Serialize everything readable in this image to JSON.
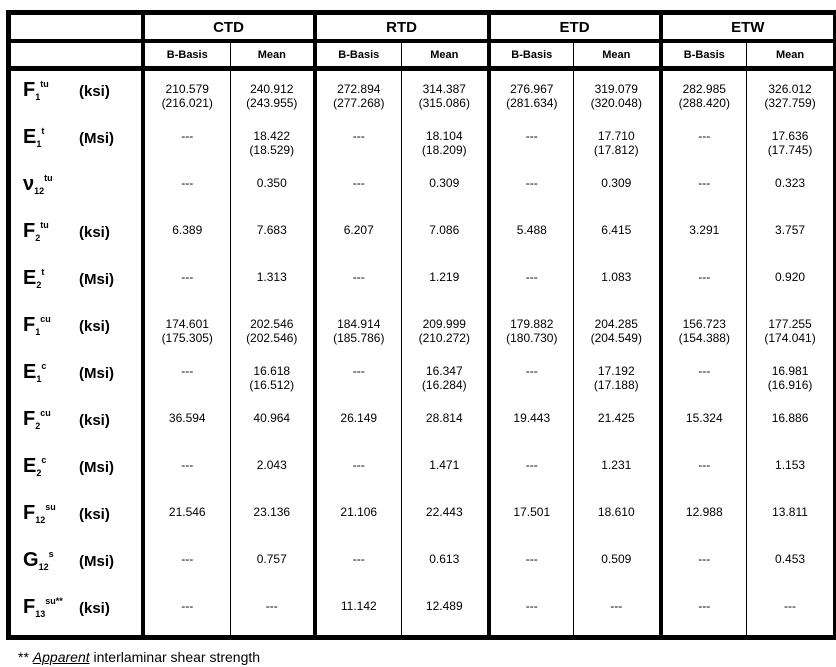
{
  "groups": [
    "CTD",
    "RTD",
    "ETD",
    "ETW"
  ],
  "subheaders": {
    "bbasis": "B-Basis",
    "mean": "Mean"
  },
  "rows": [
    {
      "sym": "F",
      "sub": "1",
      "sup": "tu",
      "unit": "(ksi)",
      "cells": [
        [
          "210.579",
          "(216.021)"
        ],
        [
          "240.912",
          "(243.955)"
        ],
        [
          "272.894",
          "(277.268)"
        ],
        [
          "314.387",
          "(315.086)"
        ],
        [
          "276.967",
          "(281.634)"
        ],
        [
          "319.079",
          "(320.048)"
        ],
        [
          "282.985",
          "(288.420)"
        ],
        [
          "326.012",
          "(327.759)"
        ]
      ]
    },
    {
      "sym": "E",
      "sub": "1",
      "sup": "t",
      "unit": "(Msi)",
      "cells": [
        [
          "---"
        ],
        [
          "18.422",
          "(18.529)"
        ],
        [
          "---"
        ],
        [
          "18.104",
          "(18.209)"
        ],
        [
          "---"
        ],
        [
          "17.710",
          "(17.812)"
        ],
        [
          "---"
        ],
        [
          "17.636",
          "(17.745)"
        ]
      ]
    },
    {
      "sym": "ν",
      "sub": "12",
      "sup": "tu",
      "unit": "",
      "cells": [
        [
          "---"
        ],
        [
          "0.350"
        ],
        [
          "---"
        ],
        [
          "0.309"
        ],
        [
          "---"
        ],
        [
          "0.309"
        ],
        [
          "---"
        ],
        [
          "0.323"
        ]
      ]
    },
    {
      "sym": "F",
      "sub": "2",
      "sup": "tu",
      "unit": "(ksi)",
      "cells": [
        [
          "6.389"
        ],
        [
          "7.683"
        ],
        [
          "6.207"
        ],
        [
          "7.086"
        ],
        [
          "5.488"
        ],
        [
          "6.415"
        ],
        [
          "3.291"
        ],
        [
          "3.757"
        ]
      ]
    },
    {
      "sym": "E",
      "sub": "2",
      "sup": "t",
      "unit": "(Msi)",
      "cells": [
        [
          "---"
        ],
        [
          "1.313"
        ],
        [
          "---"
        ],
        [
          "1.219"
        ],
        [
          "---"
        ],
        [
          "1.083"
        ],
        [
          "---"
        ],
        [
          "0.920"
        ]
      ]
    },
    {
      "sym": "F",
      "sub": "1",
      "sup": "cu",
      "unit": "(ksi)",
      "cells": [
        [
          "174.601",
          "(175.305)"
        ],
        [
          "202.546",
          "(202.546)"
        ],
        [
          "184.914",
          "(185.786)"
        ],
        [
          "209.999",
          "(210.272)"
        ],
        [
          "179.882",
          "(180.730)"
        ],
        [
          "204.285",
          "(204.549)"
        ],
        [
          "156.723",
          "(154.388)"
        ],
        [
          "177.255",
          "(174.041)"
        ]
      ]
    },
    {
      "sym": "E",
      "sub": "1",
      "sup": "c",
      "unit": "(Msi)",
      "cells": [
        [
          "---"
        ],
        [
          "16.618",
          "(16.512)"
        ],
        [
          "---"
        ],
        [
          "16.347",
          "(16.284)"
        ],
        [
          "---"
        ],
        [
          "17.192",
          "(17.188)"
        ],
        [
          "---"
        ],
        [
          "16.981",
          "(16.916)"
        ]
      ]
    },
    {
      "sym": "F",
      "sub": "2",
      "sup": "cu",
      "unit": "(ksi)",
      "cells": [
        [
          "36.594"
        ],
        [
          "40.964"
        ],
        [
          "26.149"
        ],
        [
          "28.814"
        ],
        [
          "19.443"
        ],
        [
          "21.425"
        ],
        [
          "15.324"
        ],
        [
          "16.886"
        ]
      ]
    },
    {
      "sym": "E",
      "sub": "2",
      "sup": "c",
      "unit": "(Msi)",
      "cells": [
        [
          "---"
        ],
        [
          "2.043"
        ],
        [
          "---"
        ],
        [
          "1.471"
        ],
        [
          "---"
        ],
        [
          "1.231"
        ],
        [
          "---"
        ],
        [
          "1.153"
        ]
      ]
    },
    {
      "sym": "F",
      "sub": "12",
      "sup": "su",
      "unit": "(ksi)",
      "cells": [
        [
          "21.546"
        ],
        [
          "23.136"
        ],
        [
          "21.106"
        ],
        [
          "22.443"
        ],
        [
          "17.501"
        ],
        [
          "18.610"
        ],
        [
          "12.988"
        ],
        [
          "13.811"
        ]
      ]
    },
    {
      "sym": "G",
      "sub": "12",
      "sup": "s",
      "unit": "(Msi)",
      "cells": [
        [
          "---"
        ],
        [
          "0.757"
        ],
        [
          "---"
        ],
        [
          "0.613"
        ],
        [
          "---"
        ],
        [
          "0.509"
        ],
        [
          "---"
        ],
        [
          "0.453"
        ]
      ]
    },
    {
      "sym": "F",
      "sub": "13",
      "sup": "su**",
      "unit": "(ksi)",
      "cells": [
        [
          "---"
        ],
        [
          "---"
        ],
        [
          "11.142"
        ],
        [
          "12.489"
        ],
        [
          "---"
        ],
        [
          "---"
        ],
        [
          "---"
        ],
        [
          "---"
        ]
      ]
    }
  ],
  "footnote": {
    "marker": "** ",
    "emph": "Apparent",
    "text": " interlaminar shear strength"
  }
}
